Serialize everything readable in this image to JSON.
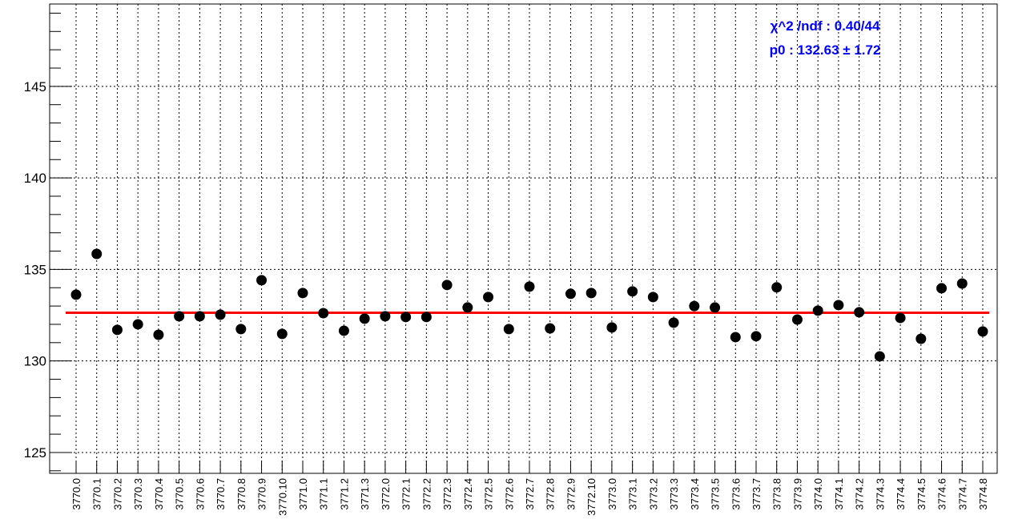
{
  "chart_data": {
    "type": "scatter",
    "categories": [
      "3770.0",
      "3770.1",
      "3770.2",
      "3770.3",
      "3770.4",
      "3770.5",
      "3770.6",
      "3770.7",
      "3770.8",
      "3770.9",
      "3770.10",
      "3771.0",
      "3771.1",
      "3771.2",
      "3771.3",
      "3772.0",
      "3772.1",
      "3772.2",
      "3772.3",
      "3772.4",
      "3772.5",
      "3772.6",
      "3772.7",
      "3772.8",
      "3772.9",
      "3772.10",
      "3773.0",
      "3773.1",
      "3773.2",
      "3773.3",
      "3773.4",
      "3773.5",
      "3773.6",
      "3773.7",
      "3773.8",
      "3773.9",
      "3774.0",
      "3774.1",
      "3774.2",
      "3774.3",
      "3774.4",
      "3774.5",
      "3774.6",
      "3774.7",
      "3774.8"
    ],
    "values": [
      133.62,
      135.85,
      131.7,
      132.0,
      131.43,
      132.44,
      132.44,
      132.53,
      131.74,
      134.41,
      131.48,
      133.71,
      132.61,
      131.65,
      132.31,
      132.44,
      132.4,
      132.4,
      134.15,
      132.92,
      133.49,
      131.74,
      134.06,
      131.78,
      133.67,
      133.71,
      131.83,
      133.8,
      133.49,
      132.09,
      133.0,
      132.92,
      131.3,
      131.35,
      134.02,
      132.26,
      132.75,
      133.05,
      132.66,
      130.25,
      132.35,
      131.21,
      133.97,
      134.23,
      131.61
    ],
    "color": "#000000",
    "fit_value": 132.63,
    "fit_color": "#ff0000",
    "annotations": [
      "χ^2 /ndf :  0.40/44",
      "p0 : 132.63 ± 1.72"
    ],
    "annotation_color": "#0000ff",
    "ylim": [
      123.86,
      149.5
    ],
    "yticks": [
      125,
      130,
      135,
      140,
      145
    ],
    "yminorticks": [
      124,
      126,
      127,
      128,
      129,
      131,
      132,
      133,
      134,
      136,
      137,
      138,
      139,
      141,
      142,
      143,
      144,
      146,
      147,
      148,
      149
    ],
    "grid": true
  }
}
